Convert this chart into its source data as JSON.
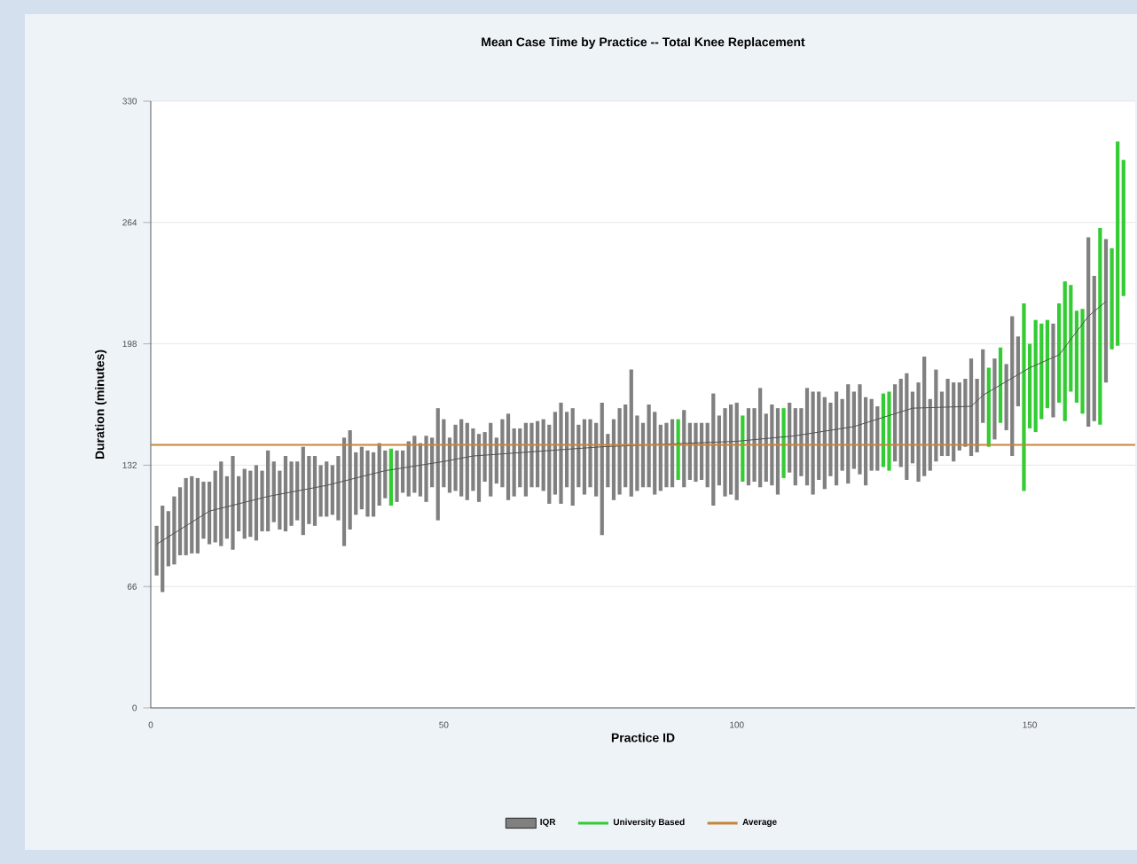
{
  "chart_data": {
    "type": "bar",
    "title": "Mean Case Time by Practice -- Total Knee Replacement",
    "xlabel": "Practice ID",
    "ylabel": "Duration (minutes)",
    "xlim": [
      0,
      168
    ],
    "xticks": [
      0,
      50,
      100,
      150
    ],
    "ylim": [
      0,
      330
    ],
    "yticks": [
      0,
      66,
      132,
      198,
      264,
      330
    ],
    "grid": "y",
    "legend": "bottom",
    "series": [
      {
        "name": "IQR",
        "color": "#808080",
        "x": [
          1,
          2,
          3,
          4,
          5,
          6,
          7,
          8,
          9,
          10,
          11,
          12,
          13,
          14,
          15,
          16,
          17,
          18,
          19,
          20,
          21,
          22,
          23,
          24,
          25,
          26,
          27,
          28,
          29,
          30,
          31,
          32,
          33,
          34,
          35,
          36,
          37,
          38,
          39,
          40,
          42,
          43,
          44,
          45,
          46,
          47,
          48,
          49,
          50,
          51,
          52,
          53,
          54,
          55,
          56,
          57,
          58,
          59,
          60,
          61,
          62,
          63,
          64,
          65,
          66,
          67,
          68,
          69,
          70,
          71,
          72,
          73,
          74,
          75,
          76,
          77,
          78,
          79,
          80,
          81,
          82,
          83,
          84,
          85,
          86,
          87,
          88,
          89,
          91,
          92,
          93,
          94,
          95,
          96,
          97,
          98,
          99,
          100,
          102,
          103,
          104,
          105,
          106,
          107,
          109,
          110,
          111,
          112,
          113,
          114,
          115,
          116,
          117,
          118,
          119,
          120,
          121,
          122,
          123,
          124,
          127,
          128,
          129,
          130,
          131,
          132,
          133,
          134,
          135,
          136,
          137,
          138,
          139,
          140,
          141,
          142,
          144,
          146,
          147,
          148,
          154,
          160,
          161,
          163
        ],
        "base": [
          72,
          63,
          77,
          78,
          83,
          83,
          84,
          84,
          92,
          89,
          90,
          88,
          92,
          86,
          96,
          92,
          93,
          91,
          96,
          96,
          101,
          97,
          96,
          99,
          102,
          94,
          100,
          99,
          104,
          104,
          105,
          102,
          88,
          97,
          105,
          108,
          104,
          104,
          110,
          114,
          112,
          117,
          115,
          117,
          115,
          112,
          120,
          102,
          120,
          117,
          118,
          115,
          113,
          118,
          112,
          123,
          115,
          122,
          120,
          113,
          115,
          120,
          115,
          120,
          120,
          118,
          111,
          116,
          111,
          120,
          110,
          120,
          116,
          120,
          115,
          94,
          120,
          113,
          116,
          120,
          115,
          118,
          120,
          120,
          116,
          118,
          120,
          120,
          120,
          124,
          123,
          124,
          120,
          110,
          121,
          115,
          116,
          113,
          121,
          123,
          120,
          123,
          121,
          116,
          128,
          121,
          126,
          121,
          116,
          124,
          119,
          126,
          121,
          129,
          122,
          130,
          127,
          121,
          129,
          129,
          134,
          131,
          124,
          133,
          123,
          126,
          129,
          134,
          137,
          137,
          134,
          140,
          142,
          137,
          139,
          155,
          146,
          151,
          137,
          164,
          158,
          153,
          156,
          177
        ],
        "values": [
          27,
          47,
          30,
          37,
          37,
          42,
          42,
          41,
          31,
          34,
          39,
          46,
          34,
          51,
          30,
          38,
          36,
          41,
          33,
          44,
          33,
          32,
          41,
          35,
          32,
          48,
          37,
          38,
          28,
          30,
          27,
          35,
          59,
          54,
          34,
          34,
          36,
          35,
          34,
          26,
          28,
          23,
          30,
          31,
          29,
          36,
          27,
          61,
          37,
          30,
          36,
          42,
          42,
          34,
          37,
          27,
          40,
          25,
          37,
          47,
          37,
          32,
          40,
          35,
          36,
          39,
          43,
          45,
          55,
          41,
          53,
          34,
          41,
          37,
          40,
          72,
          29,
          44,
          47,
          45,
          69,
          41,
          35,
          45,
          45,
          36,
          35,
          37,
          42,
          31,
          32,
          31,
          35,
          61,
          38,
          48,
          49,
          53,
          42,
          40,
          54,
          37,
          44,
          47,
          38,
          42,
          37,
          53,
          56,
          48,
          50,
          40,
          51,
          39,
          54,
          42,
          49,
          48,
          39,
          35,
          42,
          48,
          58,
          39,
          54,
          65,
          39,
          50,
          35,
          42,
          43,
          37,
          37,
          53,
          40,
          40,
          44,
          36,
          76,
          38,
          51,
          103,
          79,
          78
        ]
      },
      {
        "name": "University Based",
        "color": "#33cc33",
        "x": [
          41,
          90,
          101,
          108,
          125,
          126,
          143,
          145,
          149,
          150,
          151,
          152,
          153,
          155,
          156,
          157,
          158,
          159,
          162,
          164,
          165,
          166
        ],
        "base": [
          110,
          124,
          123,
          125,
          131,
          129,
          142,
          155,
          118,
          152,
          150,
          157,
          163,
          166,
          156,
          172,
          166,
          160,
          154,
          195,
          197,
          224
        ],
        "values": [
          31,
          33,
          36,
          38,
          40,
          43,
          43,
          41,
          102,
          46,
          61,
          52,
          48,
          54,
          76,
          58,
          50,
          57,
          107,
          55,
          111,
          74
        ]
      },
      {
        "type": "line",
        "color": "#505050",
        "x": [
          1,
          10,
          20,
          30,
          40,
          50,
          55,
          77,
          100,
          110,
          120,
          130,
          140,
          142,
          150,
          155,
          160,
          163
        ],
        "values": [
          89,
          107,
          115,
          121,
          129,
          134,
          137,
          142,
          145,
          148,
          153,
          163,
          164,
          170,
          185,
          192,
          213,
          221
        ]
      }
    ],
    "ref_lines": [
      {
        "axis": "y",
        "value": 143,
        "label": "Average",
        "color": "#c8843c"
      }
    ]
  }
}
